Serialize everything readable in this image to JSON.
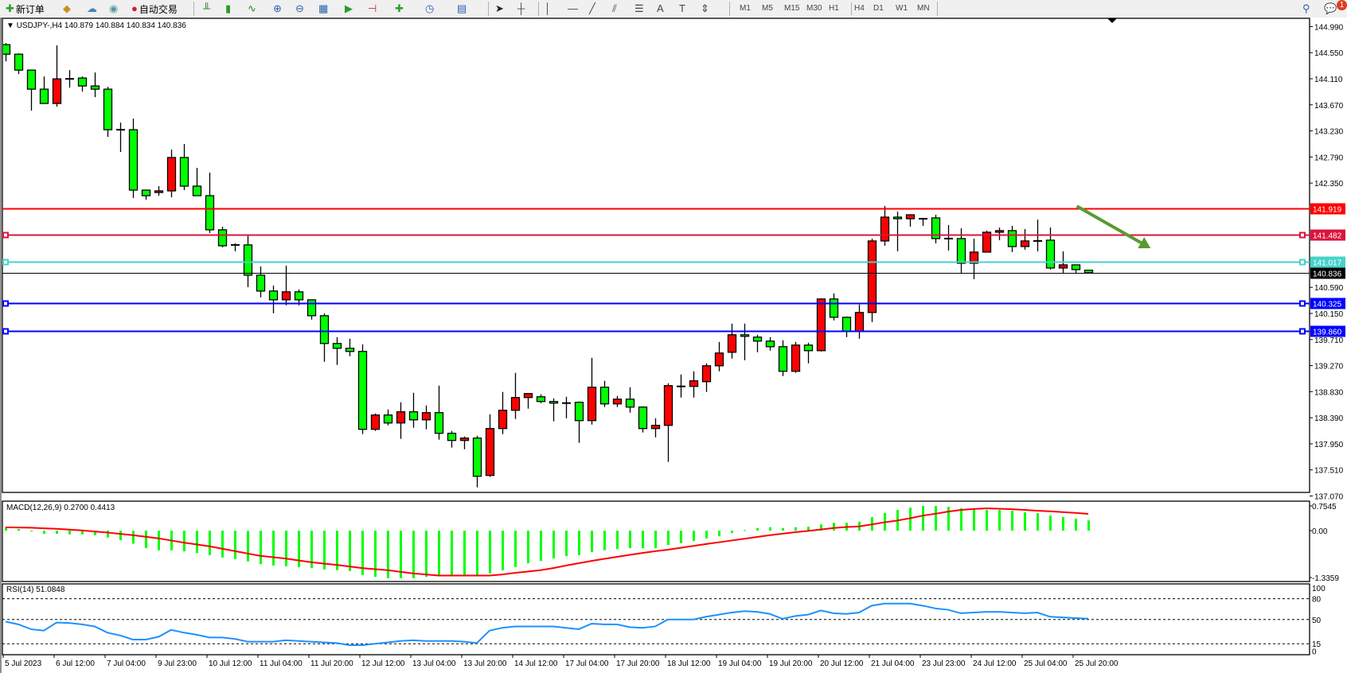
{
  "toolbar": {
    "new_order_label": "新订单",
    "auto_trading_label": "自动交易",
    "icons": [
      "new-order-icon",
      "market-watch-icon",
      "navigator-icon",
      "signals-icon",
      "auto-trading-icon",
      "bar-chart-icon",
      "candlestick-icon",
      "line-chart-icon",
      "zoom-in-icon",
      "zoom-out-icon",
      "tile-windows-icon",
      "auto-scroll-icon",
      "chart-shift-icon",
      "indicators-icon",
      "periods-icon",
      "templates-icon",
      "cursor-icon",
      "crosshair-icon",
      "vertical-line-icon",
      "horizontal-line-icon",
      "trendline-icon",
      "equidistant-channel-icon",
      "fibonacci-icon",
      "text-icon",
      "text-label-icon",
      "arrows-icon",
      "search-icon",
      "notification-icon"
    ],
    "timeframes": [
      "M1",
      "M5",
      "M15",
      "M30",
      "H1",
      "H4",
      "D1",
      "W1",
      "MN"
    ],
    "active_timeframe": "H4",
    "notification_count": "1"
  },
  "header": {
    "symbol": "USDJPY-,H4",
    "ohlc": "140.879 140.884 140.834 140.836"
  },
  "colors": {
    "up_candle": "#FF0000",
    "down_candle": "#00FF00",
    "macd_histogram": "#00FF00",
    "macd_signal": "#FF0000",
    "rsi_line": "#1E90FF",
    "arrow": "#5A9A32"
  },
  "chart_data": [
    {
      "type": "candlestick",
      "title": "USDJPY-,H4",
      "ylim": [
        137.13,
        145.13
      ],
      "y_ticks": [
        "144.990",
        "144.550",
        "144.110",
        "143.670",
        "143.230",
        "142.790",
        "142.350",
        "140.590",
        "140.150",
        "139.710",
        "139.270",
        "138.830",
        "138.390",
        "137.950",
        "137.510",
        "137.070"
      ],
      "x_ticks": [
        {
          "index": 0,
          "label": "5 Jul 2023"
        },
        {
          "index": 4,
          "label": "6 Jul 12:00"
        },
        {
          "index": 8,
          "label": "7 Jul 04:00"
        },
        {
          "index": 12,
          "label": "9 Jul 23:00"
        },
        {
          "index": 16,
          "label": "10 Jul 12:00"
        },
        {
          "index": 20,
          "label": "11 Jul 04:00"
        },
        {
          "index": 24,
          "label": "11 Jul 20:00"
        },
        {
          "index": 28,
          "label": "12 Jul 12:00"
        },
        {
          "index": 32,
          "label": "13 Jul 04:00"
        },
        {
          "index": 36,
          "label": "13 Jul 20:00"
        },
        {
          "index": 40,
          "label": "14 Jul 12:00"
        },
        {
          "index": 44,
          "label": "17 Jul 04:00"
        },
        {
          "index": 48,
          "label": "17 Jul 20:00"
        },
        {
          "index": 52,
          "label": "18 Jul 12:00"
        },
        {
          "index": 56,
          "label": "19 Jul 04:00"
        },
        {
          "index": 60,
          "label": "19 Jul 20:00"
        },
        {
          "index": 64,
          "label": "20 Jul 12:00"
        },
        {
          "index": 68,
          "label": "21 Jul 04:00"
        },
        {
          "index": 72,
          "label": "23 Jul 23:00"
        },
        {
          "index": 76,
          "label": "24 Jul 12:00"
        },
        {
          "index": 80,
          "label": "25 Jul 04:00"
        },
        {
          "index": 84,
          "label": "25 Jul 20:00"
        }
      ],
      "ohlc": [
        [
          144.685,
          144.712,
          144.403,
          144.524
        ],
        [
          144.524,
          144.538,
          144.189,
          144.256
        ],
        [
          144.256,
          144.256,
          143.572,
          143.934
        ],
        [
          143.934,
          144.149,
          143.693,
          143.693
        ],
        [
          143.693,
          144.672,
          143.639,
          144.108
        ],
        [
          144.108,
          144.256,
          143.961,
          144.108
        ],
        [
          144.122,
          144.149,
          143.894,
          143.988
        ],
        [
          143.988,
          144.216,
          143.8,
          143.934
        ],
        [
          143.934,
          143.974,
          143.129,
          143.25
        ],
        [
          143.25,
          143.371,
          142.875,
          143.25
        ],
        [
          143.25,
          143.438,
          142.097,
          142.231
        ],
        [
          142.231,
          142.231,
          142.07,
          142.137
        ],
        [
          142.191,
          142.298,
          142.137,
          142.218
        ],
        [
          142.218,
          142.915,
          142.11,
          142.781
        ],
        [
          142.781,
          143.009,
          142.231,
          142.298
        ],
        [
          142.298,
          142.606,
          142.137,
          142.137
        ],
        [
          142.137,
          142.526,
          141.507,
          141.561
        ],
        [
          141.561,
          141.614,
          141.265,
          141.292
        ],
        [
          141.306,
          141.333,
          141.198,
          141.306
        ],
        [
          141.306,
          141.467,
          140.595,
          140.796
        ],
        [
          140.796,
          140.944,
          140.421,
          140.528
        ],
        [
          140.528,
          140.622,
          140.152,
          140.38
        ],
        [
          140.38,
          140.957,
          140.287,
          140.515
        ],
        [
          140.515,
          140.555,
          140.287,
          140.38
        ],
        [
          140.38,
          140.38,
          140.045,
          140.112
        ],
        [
          140.112,
          140.152,
          139.334,
          139.643
        ],
        [
          139.643,
          139.75,
          139.281,
          139.562
        ],
        [
          139.562,
          139.723,
          139.428,
          139.509
        ],
        [
          139.509,
          139.629,
          138.114,
          138.195
        ],
        [
          138.195,
          138.463,
          138.168,
          138.436
        ],
        [
          138.436,
          138.53,
          138.262,
          138.302
        ],
        [
          138.302,
          138.651,
          138.034,
          138.49
        ],
        [
          138.49,
          138.811,
          138.221,
          138.355
        ],
        [
          138.355,
          138.597,
          138.195,
          138.476
        ],
        [
          138.476,
          138.932,
          138.02,
          138.128
        ],
        [
          138.128,
          138.168,
          137.886,
          138.007
        ],
        [
          138.007,
          138.074,
          137.859,
          138.047
        ],
        [
          138.047,
          138.087,
          137.216,
          137.403
        ],
        [
          137.417,
          138.449,
          137.39,
          138.208
        ],
        [
          138.208,
          138.825,
          138.114,
          138.516
        ],
        [
          138.516,
          139.147,
          138.369,
          138.731
        ],
        [
          138.731,
          138.798,
          138.543,
          138.798
        ],
        [
          138.744,
          138.785,
          138.637,
          138.664
        ],
        [
          138.664,
          138.718,
          138.329,
          138.637
        ],
        [
          138.637,
          138.744,
          138.382,
          138.637
        ],
        [
          138.651,
          138.664,
          137.967,
          138.342
        ],
        [
          138.342,
          139.401,
          138.275,
          138.905
        ],
        [
          138.905,
          139.013,
          138.57,
          138.624
        ],
        [
          138.624,
          138.758,
          138.57,
          138.704
        ],
        [
          138.704,
          138.905,
          138.476,
          138.57
        ],
        [
          138.57,
          138.583,
          138.141,
          138.208
        ],
        [
          138.208,
          138.382,
          138.06,
          138.262
        ],
        [
          138.262,
          138.972,
          137.645,
          138.932
        ],
        [
          138.919,
          139.12,
          138.731,
          138.919
        ],
        [
          138.919,
          139.174,
          138.731,
          139.013
        ],
        [
          138.999,
          139.308,
          138.825,
          139.267
        ],
        [
          139.267,
          139.67,
          139.174,
          139.482
        ],
        [
          139.495,
          139.978,
          139.388,
          139.79
        ],
        [
          139.79,
          139.978,
          139.361,
          139.764
        ],
        [
          139.75,
          139.79,
          139.495,
          139.683
        ],
        [
          139.683,
          139.75,
          139.522,
          139.589
        ],
        [
          139.589,
          139.697,
          139.093,
          139.174
        ],
        [
          139.174,
          139.67,
          139.147,
          139.616
        ],
        [
          139.616,
          139.656,
          139.308,
          139.522
        ],
        [
          139.522,
          140.407,
          139.509,
          140.394
        ],
        [
          140.394,
          140.488,
          140.032,
          140.085
        ],
        [
          140.085,
          140.099,
          139.75,
          139.844
        ],
        [
          139.844,
          140.3,
          139.723,
          140.166
        ],
        [
          140.166,
          141.413,
          140.005,
          141.373
        ],
        [
          141.373,
          141.963,
          141.292,
          141.775
        ],
        [
          141.775,
          141.869,
          141.198,
          141.748
        ],
        [
          141.748,
          141.815,
          141.614,
          141.815
        ],
        [
          141.748,
          141.762,
          141.628,
          141.748
        ],
        [
          141.762,
          141.815,
          141.333,
          141.413
        ],
        [
          141.413,
          141.641,
          141.212,
          141.413
        ],
        [
          141.413,
          141.587,
          140.836,
          140.997
        ],
        [
          140.997,
          141.413,
          140.729,
          141.185
        ],
        [
          141.185,
          141.547,
          141.185,
          141.52
        ],
        [
          141.52,
          141.601,
          141.386,
          141.547
        ],
        [
          141.547,
          141.628,
          141.185,
          141.279
        ],
        [
          141.279,
          141.574,
          141.225,
          141.373
        ],
        [
          141.373,
          141.735,
          141.198,
          141.373
        ],
        [
          141.386,
          141.601,
          140.89,
          140.917
        ],
        [
          140.917,
          141.198,
          140.836,
          140.97
        ],
        [
          140.97,
          140.97,
          140.836,
          140.89
        ],
        [
          140.879,
          140.884,
          140.834,
          140.836
        ]
      ],
      "horizontal_lines": [
        {
          "price": "141.919",
          "color": "#FF0000",
          "marker": false
        },
        {
          "price": "141.482",
          "color": "#DC143C",
          "marker": true
        },
        {
          "price": "141.017",
          "color": "#48D1CC",
          "marker": true
        },
        {
          "price": "140.836",
          "color": "#000000",
          "marker": false,
          "current_price": true
        },
        {
          "price": "140.325",
          "color": "#0000FF",
          "marker": true
        },
        {
          "price": "139.860",
          "color": "#0000FF",
          "marker": true
        }
      ],
      "arrow": {
        "from": {
          "index": 84.1,
          "price": 141.96
        },
        "to": {
          "index": 89.9,
          "price": 141.25
        }
      }
    },
    {
      "type": "bar",
      "label": "MACD(12,26,9) 0.2700 0.4413",
      "ylim": [
        -1.3359,
        0.7545
      ],
      "y_ticks": [
        "0.7545",
        "0.00",
        "-1.3359"
      ],
      "histogram": [
        0.077,
        0.042,
        -0.014,
        -0.084,
        -0.084,
        -0.098,
        -0.098,
        -0.119,
        -0.181,
        -0.251,
        -0.342,
        -0.46,
        -0.516,
        -0.516,
        -0.544,
        -0.586,
        -0.642,
        -0.704,
        -0.746,
        -0.809,
        -0.879,
        -0.914,
        -0.934,
        -0.962,
        -0.983,
        -1.018,
        -1.039,
        -1.06,
        -1.165,
        -1.213,
        -1.248,
        -1.248,
        -1.248,
        -1.213,
        -1.179,
        -1.179,
        -1.179,
        -1.179,
        -1.123,
        -1.039,
        -0.955,
        -0.858,
        -0.795,
        -0.725,
        -0.669,
        -0.642,
        -0.565,
        -0.516,
        -0.481,
        -0.46,
        -0.46,
        -0.46,
        -0.377,
        -0.328,
        -0.272,
        -0.202,
        -0.146,
        -0.063,
        0.014,
        0.07,
        0.091,
        0.07,
        0.091,
        0.105,
        0.167,
        0.209,
        0.209,
        0.237,
        0.356,
        0.467,
        0.544,
        0.607,
        0.649,
        0.649,
        0.628,
        0.586,
        0.565,
        0.544,
        0.544,
        0.523,
        0.481,
        0.46,
        0.397,
        0.356,
        0.314,
        0.27
      ],
      "signal": [
        0.087,
        0.082,
        0.077,
        0.063,
        0.049,
        0.028,
        0.007,
        -0.021,
        -0.049,
        -0.084,
        -0.119,
        -0.16,
        -0.202,
        -0.258,
        -0.314,
        -0.362,
        -0.411,
        -0.474,
        -0.537,
        -0.6,
        -0.662,
        -0.697,
        -0.732,
        -0.781,
        -0.83,
        -0.865,
        -0.9,
        -0.941,
        -0.983,
        -1.011,
        -1.039,
        -1.081,
        -1.123,
        -1.151,
        -1.179,
        -1.179,
        -1.179,
        -1.179,
        -1.179,
        -1.151,
        -1.109,
        -1.074,
        -1.039,
        -0.983,
        -0.915,
        -0.855,
        -0.795,
        -0.741,
        -0.688,
        -0.635,
        -0.587,
        -0.54,
        -0.5,
        -0.45,
        -0.4,
        -0.35,
        -0.305,
        -0.258,
        -0.212,
        -0.165,
        -0.119,
        -0.08,
        -0.04,
        -0.007,
        0.03,
        0.07,
        0.097,
        0.112,
        0.165,
        0.22,
        0.265,
        0.325,
        0.395,
        0.445,
        0.5,
        0.545,
        0.57,
        0.586,
        0.578,
        0.565,
        0.545,
        0.525,
        0.509,
        0.488,
        0.467,
        0.441
      ]
    },
    {
      "type": "line",
      "label": "RSI(14) 51.0848",
      "ylim": [
        0,
        100
      ],
      "y_ticks": [
        "100",
        "80",
        "50",
        "15",
        "0"
      ],
      "levels": [
        80,
        50,
        15
      ],
      "values": [
        47,
        43,
        36,
        34,
        45.5,
        45,
        43,
        40,
        31,
        27,
        21,
        21,
        25,
        35,
        31,
        28,
        24,
        24,
        22,
        18,
        18,
        18,
        20,
        19,
        18,
        17,
        16,
        13,
        13,
        15,
        17,
        19,
        20,
        19,
        19,
        19,
        18,
        16,
        34,
        38,
        40,
        40,
        40,
        40,
        38,
        36,
        44,
        43,
        43,
        39,
        38,
        40,
        50,
        50,
        50,
        54,
        57,
        60,
        62,
        61,
        58,
        51,
        55,
        57,
        63,
        59,
        58,
        60,
        70,
        73,
        73,
        73,
        70,
        66,
        64,
        59,
        60,
        61,
        61,
        60,
        59,
        60,
        54,
        53,
        52,
        51.0848
      ]
    }
  ]
}
